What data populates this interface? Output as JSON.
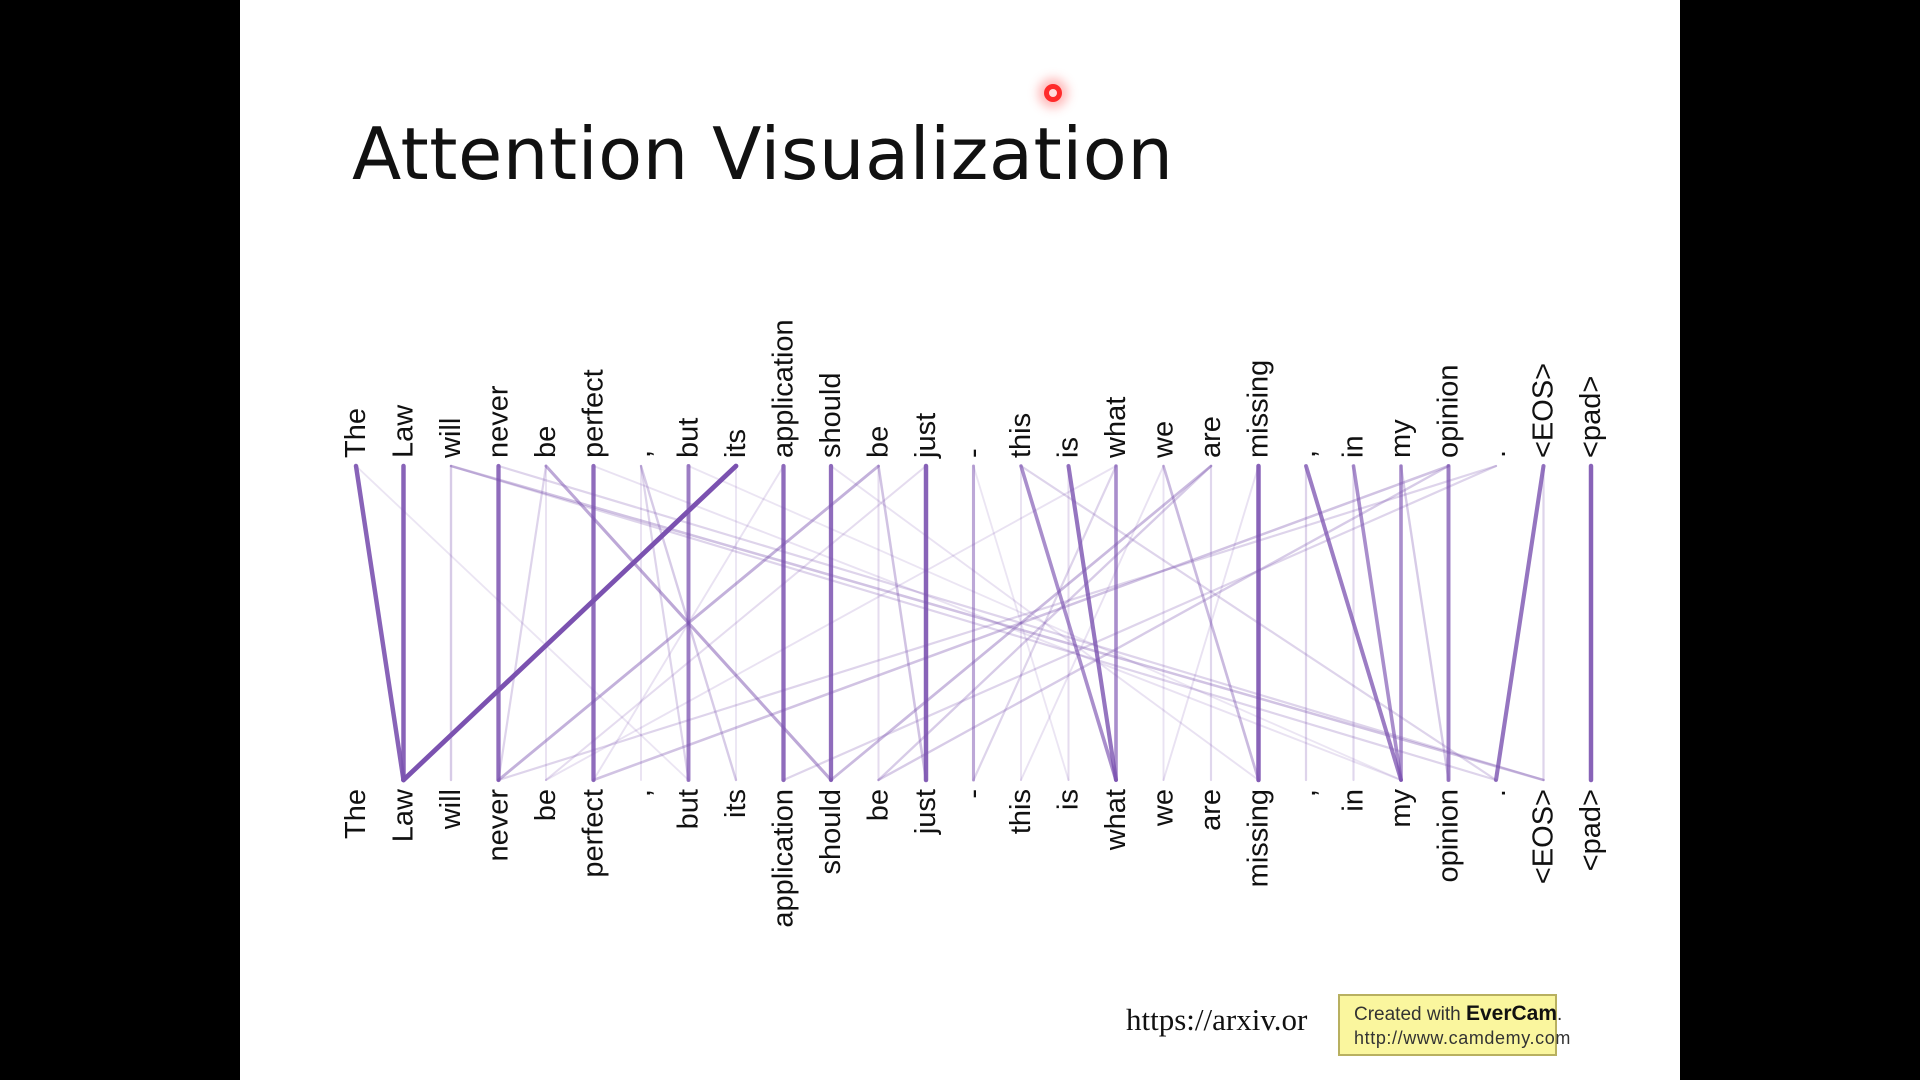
{
  "slide": {
    "title": "Attention Visualization",
    "url_text": "https://arxiv.or",
    "watermark": {
      "prefix": "Created with",
      "brand": "EverCam",
      "suffix": ".",
      "url": "http://www.camdemy.com"
    }
  },
  "colors": {
    "background": "#000000",
    "slide": "#ffffff",
    "attention": "#7b52b0",
    "laser": "#ff2a2a"
  },
  "tokens_top": [
    "The",
    "Law",
    "will",
    "never",
    "be",
    "perfect",
    ",",
    "but",
    "its",
    "application",
    "should",
    "be",
    "just",
    "-",
    "this",
    "is",
    "what",
    "we",
    "are",
    "missing",
    ",",
    "in",
    "my",
    "opinion",
    ".",
    "<EOS>",
    "<pad>"
  ],
  "tokens_bottom": [
    "The",
    "Law",
    "will",
    "never",
    "be",
    "perfect",
    ",",
    "but",
    "its",
    "application",
    "should",
    "be",
    "just",
    "-",
    "this",
    "is",
    "what",
    "we",
    "are",
    "missing",
    ",",
    "in",
    "my",
    "opinion",
    ".",
    "<EOS>",
    "<pad>"
  ],
  "attention_links": [
    [
      0,
      1,
      0.85
    ],
    [
      1,
      1,
      0.85
    ],
    [
      2,
      2,
      0.25
    ],
    [
      3,
      3,
      0.8
    ],
    [
      5,
      5,
      0.8
    ],
    [
      7,
      7,
      0.7
    ],
    [
      8,
      1,
      0.95
    ],
    [
      9,
      9,
      0.8
    ],
    [
      10,
      10,
      0.8
    ],
    [
      12,
      12,
      0.85
    ],
    [
      13,
      13,
      0.45
    ],
    [
      15,
      16,
      0.75
    ],
    [
      16,
      16,
      0.6
    ],
    [
      19,
      19,
      0.85
    ],
    [
      20,
      22,
      0.7
    ],
    [
      21,
      22,
      0.6
    ],
    [
      22,
      22,
      0.6
    ],
    [
      23,
      23,
      0.7
    ],
    [
      25,
      24,
      0.75
    ],
    [
      26,
      26,
      0.85
    ],
    [
      14,
      16,
      0.6
    ],
    [
      11,
      3,
      0.4
    ],
    [
      11,
      12,
      0.3
    ],
    [
      18,
      10,
      0.35
    ],
    [
      18,
      11,
      0.25
    ],
    [
      17,
      19,
      0.35
    ],
    [
      4,
      10,
      0.45
    ],
    [
      4,
      3,
      0.2
    ],
    [
      2,
      25,
      0.3
    ],
    [
      3,
      25,
      0.2
    ],
    [
      2,
      24,
      0.2
    ],
    [
      6,
      8,
      0.25
    ],
    [
      6,
      7,
      0.2
    ],
    [
      14,
      24,
      0.2
    ],
    [
      23,
      5,
      0.3
    ],
    [
      23,
      11,
      0.25
    ],
    [
      22,
      23,
      0.25
    ],
    [
      24,
      3,
      0.2
    ],
    [
      24,
      9,
      0.2
    ],
    [
      12,
      4,
      0.15
    ],
    [
      9,
      5,
      0.12
    ],
    [
      10,
      19,
      0.12
    ],
    [
      16,
      13,
      0.2
    ],
    [
      17,
      14,
      0.12
    ],
    [
      16,
      4,
      0.12
    ],
    [
      0,
      7,
      0.1
    ],
    [
      5,
      22,
      0.12
    ],
    [
      7,
      22,
      0.1
    ],
    [
      13,
      15,
      0.1
    ],
    [
      19,
      17,
      0.12
    ],
    [
      20,
      20,
      0.2
    ],
    [
      21,
      21,
      0.18
    ],
    [
      25,
      25,
      0.2
    ],
    [
      15,
      15,
      0.15
    ],
    [
      17,
      17,
      0.12
    ],
    [
      18,
      18,
      0.18
    ],
    [
      11,
      11,
      0.15
    ],
    [
      6,
      6,
      0.12
    ],
    [
      4,
      4,
      0.12
    ],
    [
      8,
      8,
      0.1
    ],
    [
      14,
      14,
      0.12
    ]
  ]
}
